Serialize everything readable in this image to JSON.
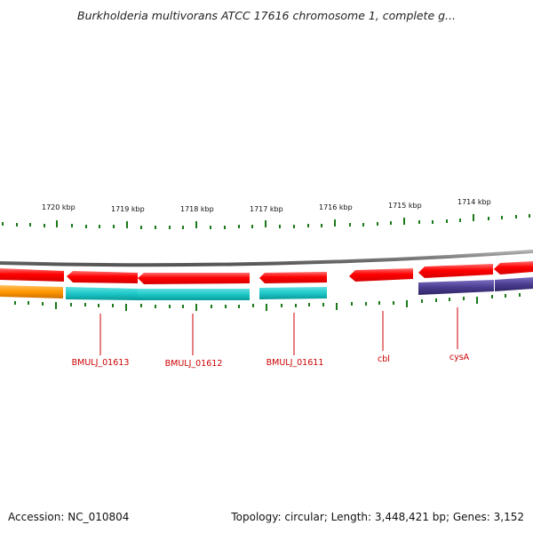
{
  "title": "Burkholderia multivorans ATCC 17616 chromosome 1, complete g...",
  "footer": {
    "accession_label": "Accession: NC_010804",
    "topology_label": "Topology: circular; Length: 3,448,421 bp; Genes: 3,152"
  },
  "ruler": {
    "labels": [
      "1720 kbp",
      "1719 kbp",
      "1718 kbp",
      "1717 kbp",
      "1716 kbp",
      "1715 kbp",
      "1714 kbp"
    ]
  },
  "genes": [
    "BMULJ_01613",
    "BMULJ_01612",
    "BMULJ_01611",
    "cbl",
    "cysA"
  ],
  "colors": {
    "backbone": "#7a7a7a",
    "gene_red": "#ff0000",
    "cds_cyan": "#1ec8c8",
    "cds_orange": "#ff9900",
    "cds_purple": "#4a3d8f",
    "tick_green": "#1a7a1a",
    "label_red": "#cc0000"
  }
}
